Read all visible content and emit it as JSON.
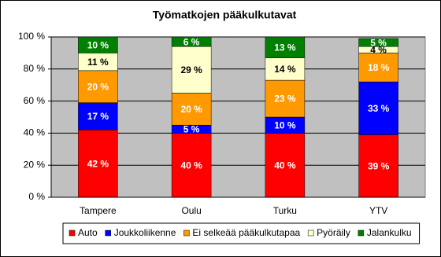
{
  "chart_data": {
    "type": "stacked_bar",
    "title": "Työmatkojen pääkulkutavat",
    "categories": [
      "Tampere",
      "Oulu",
      "Turku",
      "YTV"
    ],
    "series": [
      {
        "name": "Auto",
        "color": "#ff0000",
        "values": [
          42,
          40,
          40,
          39
        ],
        "value_labels": [
          "42 %",
          "40 %",
          "40 %",
          "39 %"
        ]
      },
      {
        "name": "Joukkoliikenne",
        "color": "#0000ff",
        "values": [
          17,
          5,
          10,
          33
        ],
        "value_labels": [
          "17 %",
          "5 %",
          "10 %",
          "33 %"
        ]
      },
      {
        "name": "Ei selkeää pääkulkutapaa",
        "color": "#ff9900",
        "values": [
          20,
          20,
          23,
          18
        ],
        "value_labels": [
          "20 %",
          "20 %",
          "23 %",
          "18 %"
        ]
      },
      {
        "name": "Pyöräily",
        "color": "#ffffcc",
        "values": [
          11,
          29,
          14,
          4
        ],
        "value_labels": [
          "11 %",
          "29 %",
          "14 %",
          "4 %"
        ]
      },
      {
        "name": "Jalankulku",
        "color": "#008000",
        "values": [
          10,
          6,
          13,
          5
        ],
        "value_labels": [
          "10 %",
          "6 %",
          "13 %",
          "5 %"
        ]
      }
    ],
    "ylim": [
      0,
      100
    ],
    "yticks": [
      {
        "value": 0,
        "label": "0 %"
      },
      {
        "value": 20,
        "label": "20 %"
      },
      {
        "value": 40,
        "label": "40 %"
      },
      {
        "value": 60,
        "label": "60 %"
      },
      {
        "value": 80,
        "label": "80 %"
      },
      {
        "value": 100,
        "label": "100 %"
      }
    ],
    "grid": true,
    "legend": "bottom",
    "plot_background": "#c0c0c0"
  }
}
